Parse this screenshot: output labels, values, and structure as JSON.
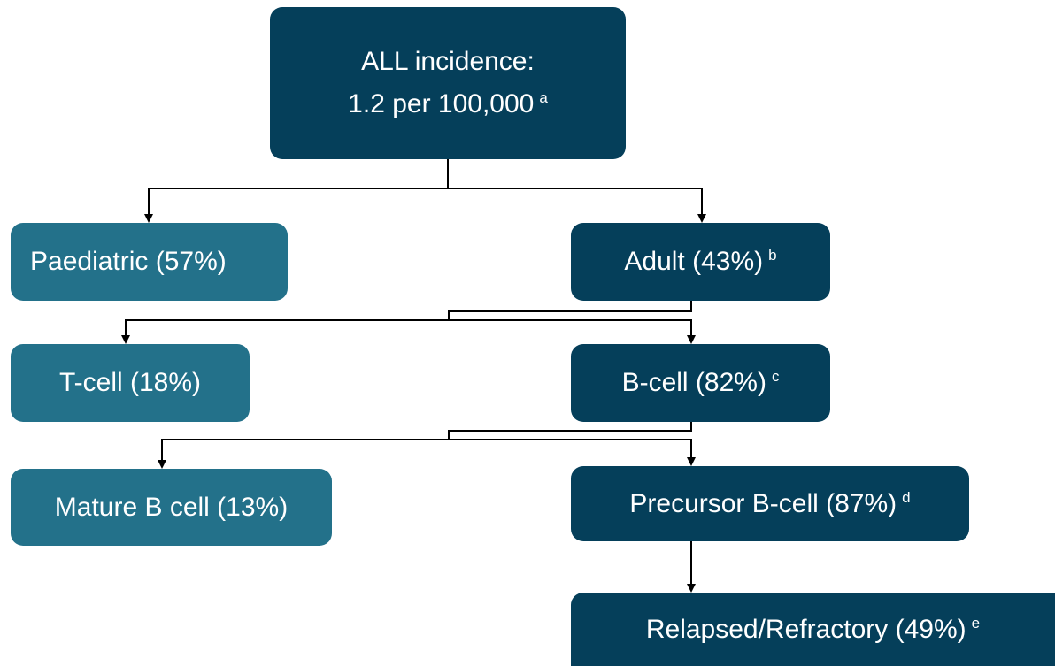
{
  "nodes": [
    {
      "label": "ALL incidence:",
      "label2": "1.2 per 100,000",
      "note": "a"
    },
    {
      "label": "Paediatric (57%)"
    },
    {
      "label": "Adult (43%)",
      "note": "b"
    },
    {
      "label": "T-cell (18%)"
    },
    {
      "label": "B-cell (82%)",
      "note": "c"
    },
    {
      "label": "Mature B cell (13%)"
    },
    {
      "label": "Precursor B-cell (87%)",
      "note": "d"
    },
    {
      "label": "Relapsed/Refractory (49%)",
      "note": "e"
    }
  ]
}
